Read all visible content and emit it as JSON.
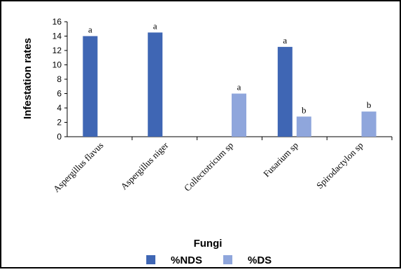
{
  "chart_data": {
    "type": "bar",
    "xlabel": "Fungi",
    "ylabel": "Infestation rates",
    "ylim": [
      0,
      16
    ],
    "yticks": [
      "0",
      "2",
      "4",
      "6",
      "8",
      "10",
      "12",
      "14",
      "16"
    ],
    "categories": [
      "Aspergillus flavus",
      "Aspergillus niger",
      "Collectotricum sp",
      "Fusarium sp",
      "Spirodactylon sp"
    ],
    "series": [
      {
        "name": "%NDS",
        "color": "#3f66b4",
        "values": [
          14,
          14.5,
          0,
          12.5,
          0
        ],
        "labels": [
          "a",
          "a",
          "",
          "a",
          ""
        ]
      },
      {
        "name": "%DS",
        "color": "#8fa6dc",
        "values": [
          0,
          0,
          6,
          2.8,
          3.5
        ],
        "labels": [
          "",
          "",
          "a",
          "b",
          "b"
        ]
      }
    ],
    "grid": false,
    "legend_position": "bottom"
  }
}
